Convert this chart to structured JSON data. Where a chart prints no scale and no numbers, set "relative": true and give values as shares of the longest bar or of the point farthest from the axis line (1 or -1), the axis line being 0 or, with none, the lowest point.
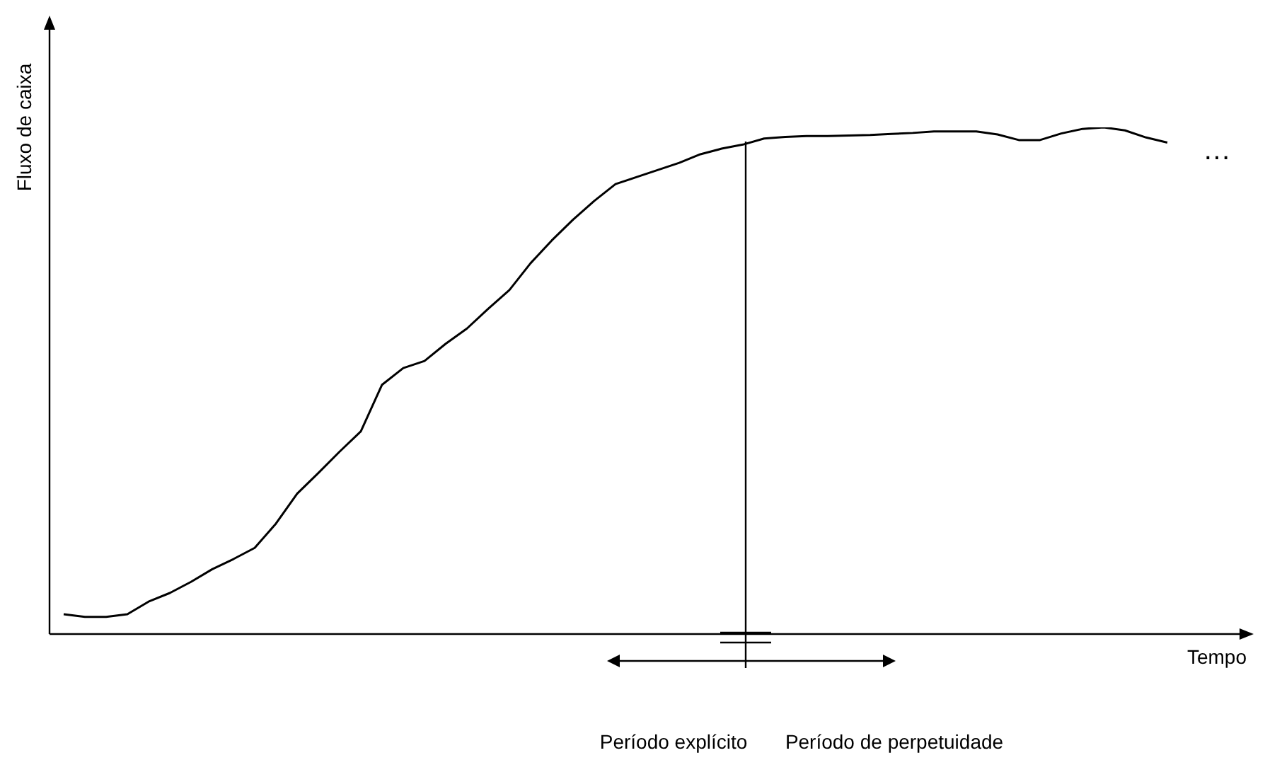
{
  "chart_data": {
    "type": "line",
    "relative": true,
    "xlabel": "Tempo",
    "ylabel": "Fluxo de caixa",
    "categories": [
      null,
      null,
      null,
      null,
      null,
      null,
      null,
      null,
      null,
      null,
      null,
      null,
      null,
      null,
      null,
      null,
      null,
      null,
      null,
      null,
      null,
      null,
      null,
      null,
      null,
      null,
      null,
      null,
      null,
      null,
      null,
      null,
      null,
      null,
      null,
      null,
      null,
      null,
      null,
      null,
      null,
      null,
      null,
      null,
      null,
      null,
      null,
      null,
      null,
      null,
      null,
      null,
      null
    ],
    "series": [
      {
        "color": "#000000",
        "values": [
          0.039,
          0.034,
          0.034,
          0.039,
          0.064,
          0.081,
          0.103,
          0.128,
          0.148,
          0.17,
          0.218,
          0.277,
          0.318,
          0.36,
          0.4,
          0.492,
          0.525,
          0.539,
          0.573,
          0.603,
          0.642,
          0.679,
          0.732,
          0.777,
          0.818,
          0.855,
          0.888,
          0.902,
          0.916,
          0.93,
          0.947,
          0.958,
          0.966,
          0.978,
          0.981,
          0.983,
          0.983,
          0.984,
          0.985,
          0.987,
          0.989,
          0.992,
          0.992,
          0.992,
          0.986,
          0.975,
          0.975,
          0.988,
          0.997,
          1,
          0.994,
          0.98,
          0.97
        ]
      }
    ],
    "annotations": [
      "…",
      "Período explícito",
      "Período de perpetuidade"
    ],
    "legend": false,
    "marker": "none",
    "line_style": "solid"
  }
}
